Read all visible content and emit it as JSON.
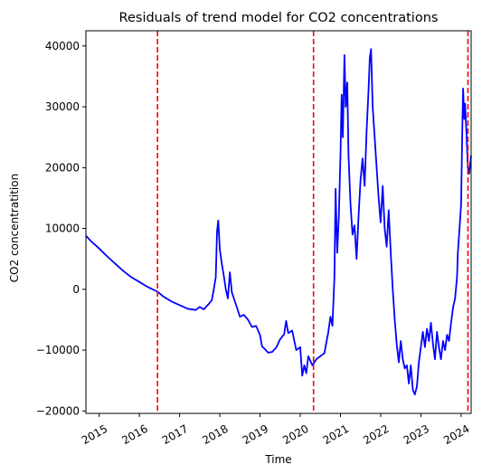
{
  "chart_data": {
    "type": "line",
    "title": "Residuals of trend model for CO2 concentrations",
    "xlabel": "Time",
    "ylabel": "CO2 concentratition",
    "xlim": [
      2014.67,
      2024.25
    ],
    "ylim": [
      -20400,
      42500
    ],
    "x_ticks": [
      {
        "value": 2015,
        "label": "2015"
      },
      {
        "value": 2016,
        "label": "2016"
      },
      {
        "value": 2017,
        "label": "2017"
      },
      {
        "value": 2018,
        "label": "2018"
      },
      {
        "value": 2019,
        "label": "2019"
      },
      {
        "value": 2020,
        "label": "2020"
      },
      {
        "value": 2021,
        "label": "2021"
      },
      {
        "value": 2022,
        "label": "2022"
      },
      {
        "value": 2023,
        "label": "2023"
      },
      {
        "value": 2024,
        "label": "2024"
      }
    ],
    "y_ticks": [
      {
        "value": -20000,
        "label": "−20000"
      },
      {
        "value": -10000,
        "label": "−10000"
      },
      {
        "value": 0,
        "label": "0"
      },
      {
        "value": 10000,
        "label": "10000"
      },
      {
        "value": 20000,
        "label": "20000"
      },
      {
        "value": 30000,
        "label": "30000"
      },
      {
        "value": 40000,
        "label": "40000"
      }
    ],
    "grid": false,
    "vlines": [
      {
        "x": 2016.45,
        "color": "#ff0000",
        "style": "dashed"
      },
      {
        "x": 2020.33,
        "color": "#ff0000",
        "style": "dashed"
      },
      {
        "x": 2024.17,
        "color": "#ff0000",
        "style": "dashed"
      }
    ],
    "series": [
      {
        "color": "#0000ff",
        "points": [
          [
            2014.67,
            8800
          ],
          [
            2014.8,
            7900
          ],
          [
            2015.0,
            6700
          ],
          [
            2015.2,
            5400
          ],
          [
            2015.4,
            4200
          ],
          [
            2015.6,
            3000
          ],
          [
            2015.8,
            2000
          ],
          [
            2016.0,
            1200
          ],
          [
            2016.2,
            400
          ],
          [
            2016.45,
            -400
          ],
          [
            2016.6,
            -1200
          ],
          [
            2016.8,
            -2000
          ],
          [
            2017.0,
            -2600
          ],
          [
            2017.2,
            -3200
          ],
          [
            2017.4,
            -3400
          ],
          [
            2017.5,
            -2900
          ],
          [
            2017.6,
            -3300
          ],
          [
            2017.7,
            -2600
          ],
          [
            2017.8,
            -1800
          ],
          [
            2017.85,
            0
          ],
          [
            2017.9,
            2000
          ],
          [
            2017.93,
            9500
          ],
          [
            2017.96,
            11300
          ],
          [
            2018.0,
            6500
          ],
          [
            2018.05,
            4200
          ],
          [
            2018.1,
            2200
          ],
          [
            2018.15,
            0
          ],
          [
            2018.2,
            -1500
          ],
          [
            2018.25,
            2800
          ],
          [
            2018.3,
            -500
          ],
          [
            2018.4,
            -2500
          ],
          [
            2018.5,
            -4500
          ],
          [
            2018.6,
            -4200
          ],
          [
            2018.7,
            -5000
          ],
          [
            2018.8,
            -6200
          ],
          [
            2018.9,
            -6000
          ],
          [
            2019.0,
            -7500
          ],
          [
            2019.05,
            -9400
          ],
          [
            2019.1,
            -9700
          ],
          [
            2019.2,
            -10400
          ],
          [
            2019.3,
            -10300
          ],
          [
            2019.4,
            -9600
          ],
          [
            2019.5,
            -8200
          ],
          [
            2019.6,
            -7400
          ],
          [
            2019.65,
            -5200
          ],
          [
            2019.7,
            -7200
          ],
          [
            2019.8,
            -6800
          ],
          [
            2019.9,
            -10000
          ],
          [
            2020.0,
            -9500
          ],
          [
            2020.05,
            -14200
          ],
          [
            2020.1,
            -12500
          ],
          [
            2020.15,
            -13800
          ],
          [
            2020.2,
            -11000
          ],
          [
            2020.3,
            -12500
          ],
          [
            2020.4,
            -11500
          ],
          [
            2020.5,
            -11000
          ],
          [
            2020.6,
            -10500
          ],
          [
            2020.7,
            -7000
          ],
          [
            2020.75,
            -4500
          ],
          [
            2020.8,
            -6000
          ],
          [
            2020.85,
            2000
          ],
          [
            2020.88,
            16500
          ],
          [
            2020.92,
            6000
          ],
          [
            2020.96,
            12000
          ],
          [
            2021.0,
            22000
          ],
          [
            2021.03,
            32000
          ],
          [
            2021.06,
            25000
          ],
          [
            2021.1,
            38500
          ],
          [
            2021.13,
            30000
          ],
          [
            2021.17,
            34000
          ],
          [
            2021.2,
            22000
          ],
          [
            2021.25,
            14000
          ],
          [
            2021.3,
            9000
          ],
          [
            2021.35,
            10500
          ],
          [
            2021.4,
            5000
          ],
          [
            2021.45,
            12000
          ],
          [
            2021.5,
            18000
          ],
          [
            2021.55,
            21500
          ],
          [
            2021.6,
            17000
          ],
          [
            2021.65,
            26000
          ],
          [
            2021.7,
            33000
          ],
          [
            2021.73,
            38000
          ],
          [
            2021.76,
            39500
          ],
          [
            2021.8,
            30000
          ],
          [
            2021.85,
            25000
          ],
          [
            2021.9,
            20000
          ],
          [
            2021.95,
            15000
          ],
          [
            2022.0,
            11000
          ],
          [
            2022.05,
            17000
          ],
          [
            2022.1,
            10000
          ],
          [
            2022.15,
            7000
          ],
          [
            2022.2,
            13000
          ],
          [
            2022.25,
            6000
          ],
          [
            2022.3,
            0
          ],
          [
            2022.35,
            -5000
          ],
          [
            2022.4,
            -9000
          ],
          [
            2022.45,
            -12000
          ],
          [
            2022.5,
            -8500
          ],
          [
            2022.55,
            -11500
          ],
          [
            2022.6,
            -13000
          ],
          [
            2022.65,
            -12500
          ],
          [
            2022.7,
            -15500
          ],
          [
            2022.75,
            -12500
          ],
          [
            2022.8,
            -16500
          ],
          [
            2022.85,
            -17300
          ],
          [
            2022.9,
            -16000
          ],
          [
            2022.95,
            -12000
          ],
          [
            2023.0,
            -9500
          ],
          [
            2023.05,
            -7000
          ],
          [
            2023.1,
            -9500
          ],
          [
            2023.15,
            -6500
          ],
          [
            2023.2,
            -8500
          ],
          [
            2023.25,
            -5500
          ],
          [
            2023.3,
            -9000
          ],
          [
            2023.35,
            -11500
          ],
          [
            2023.4,
            -7000
          ],
          [
            2023.45,
            -9500
          ],
          [
            2023.5,
            -11500
          ],
          [
            2023.55,
            -8500
          ],
          [
            2023.6,
            -10000
          ],
          [
            2023.65,
            -7500
          ],
          [
            2023.7,
            -8500
          ],
          [
            2023.75,
            -5500
          ],
          [
            2023.8,
            -3000
          ],
          [
            2023.85,
            -1500
          ],
          [
            2023.9,
            2000
          ],
          [
            2023.92,
            6000
          ],
          [
            2023.95,
            9000
          ],
          [
            2024.0,
            14000
          ],
          [
            2024.03,
            26000
          ],
          [
            2024.05,
            33000
          ],
          [
            2024.08,
            28000
          ],
          [
            2024.1,
            30500
          ],
          [
            2024.13,
            26000
          ],
          [
            2024.17,
            20000
          ],
          [
            2024.2,
            19000
          ],
          [
            2024.25,
            22000
          ]
        ]
      }
    ]
  }
}
